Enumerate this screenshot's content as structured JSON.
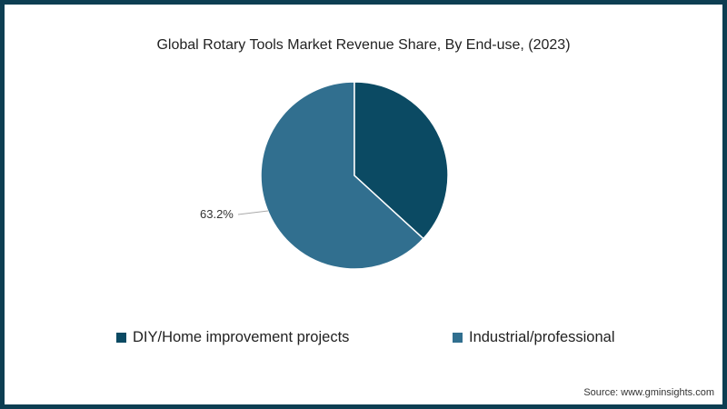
{
  "title": "Global Rotary Tools Market Revenue Share, By End-use, (2023)",
  "source": "Source: www.gminsights.com",
  "colors": {
    "diy": "#0b4a63",
    "industrial": "#316f8f",
    "border": "#0d3e52"
  },
  "labels": {
    "industrial_pct": "63.2%"
  },
  "legend": [
    {
      "label": "DIY/Home improvement projects",
      "color": "#0b4a63"
    },
    {
      "label": "Industrial/professional",
      "color": "#316f8f"
    }
  ],
  "chart_data": {
    "type": "pie",
    "title": "Global Rotary Tools Market Revenue Share, By End-use, (2023)",
    "categories": [
      "DIY/Home improvement projects",
      "Industrial/professional"
    ],
    "values": [
      36.8,
      63.2
    ],
    "data_labels": {
      "Industrial/professional": "63.2%"
    },
    "colors": [
      "#0b4a63",
      "#316f8f"
    ],
    "legend_position": "bottom",
    "source": "Source: www.gminsights.com"
  }
}
